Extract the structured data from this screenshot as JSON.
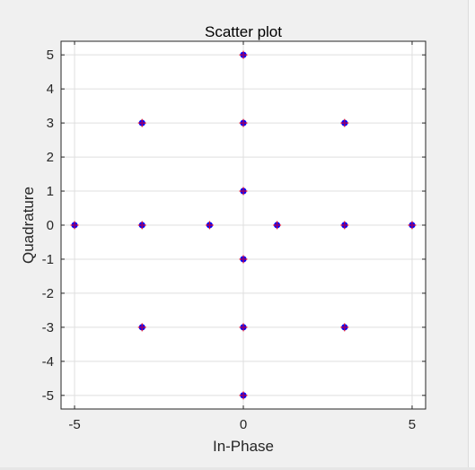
{
  "chart_data": {
    "type": "scatter",
    "title": "Scatter plot",
    "xlabel": "In-Phase",
    "ylabel": "Quadrature",
    "xlim": [
      -5.4,
      5.4
    ],
    "ylim": [
      -5.4,
      5.4
    ],
    "xticks": [
      -5,
      0,
      5
    ],
    "xtick_labels": [
      "-5",
      "0",
      "5"
    ],
    "yticks": [
      5,
      4,
      3,
      2,
      1,
      0,
      -1,
      -2,
      -3,
      -4,
      -5
    ],
    "ytick_labels": [
      "5",
      "4",
      "3",
      "2",
      "1",
      "0",
      "-1",
      "-2",
      "-3",
      "-4",
      "-5"
    ],
    "grid": true,
    "marker_color": "#0000ff",
    "marker_edge_color": "#ff0000",
    "x": [
      0,
      -3,
      0,
      3,
      0,
      -5,
      -3,
      -1,
      1,
      3,
      5,
      0,
      -3,
      0,
      3,
      0
    ],
    "y": [
      5,
      3,
      3,
      3,
      1,
      0,
      0,
      0,
      0,
      0,
      0,
      -1,
      -3,
      -3,
      -3,
      -5
    ]
  }
}
